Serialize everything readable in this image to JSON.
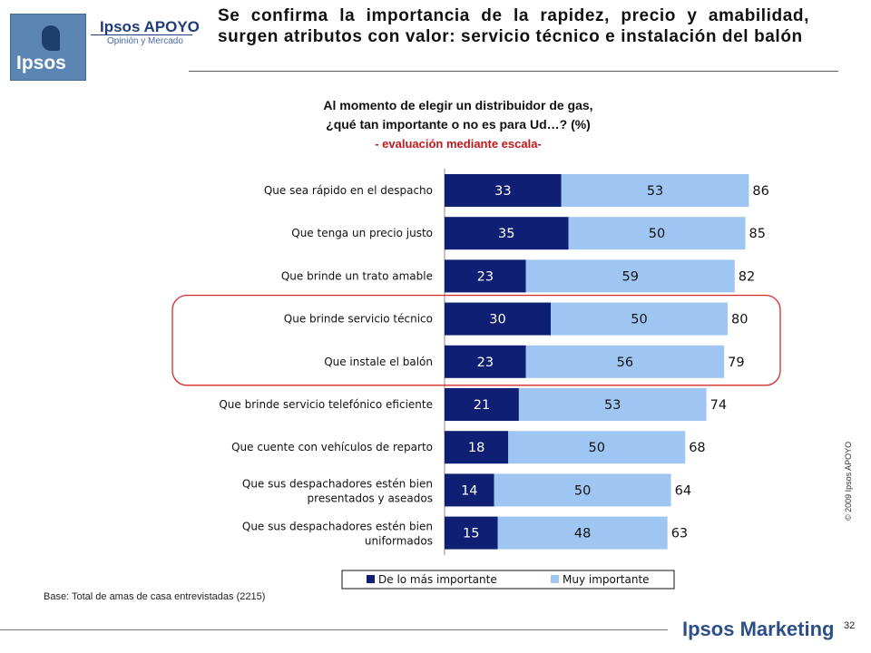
{
  "header": {
    "brand_name": "Ipsos APOYO",
    "brand_sub": "Opinión y Mercado",
    "logo_word": "Ipsos",
    "title": "Se confirma la importancia de la rapidez, precio y amabilidad, surgen atributos con valor: servicio técnico e instalación del balón"
  },
  "question": {
    "line1": "Al momento de elegir un distribuidor de gas,",
    "line2": "¿qué tan importante o no es para Ud…? (%)",
    "line3": "- evaluación  mediante escala-"
  },
  "footer": {
    "base_note": "Base: Total de amas de casa entrevistadas (2215)",
    "copyright": "© 2009 Ipsos APOYO",
    "page_number": "32",
    "marketing_logo": "Ipsos Marketing"
  },
  "colors": {
    "dark_series": "#0f1f73",
    "light_series": "#9fc6f2",
    "highlight": "#d42a2a"
  },
  "chart_data": {
    "type": "bar",
    "orientation": "horizontal",
    "stacked": true,
    "categories": [
      [
        "Que sea rápido en el despacho"
      ],
      [
        "Que tenga un precio justo"
      ],
      [
        "Que brinde un trato amable"
      ],
      [
        "Que brinde servicio técnico"
      ],
      [
        "Que instale el balón"
      ],
      [
        "Que brinde servicio telefónico eficiente"
      ],
      [
        "Que cuente con vehículos de reparto"
      ],
      [
        "Que sus despachadores estén bien",
        "presentados y aseados"
      ],
      [
        "Que sus despachadores estén bien",
        "uniformados"
      ]
    ],
    "series": [
      {
        "name": "De lo más importante",
        "values": [
          33,
          35,
          23,
          30,
          23,
          21,
          18,
          14,
          15
        ]
      },
      {
        "name": "Muy importante",
        "values": [
          53,
          50,
          59,
          50,
          56,
          53,
          50,
          50,
          48
        ]
      }
    ],
    "totals": [
      86,
      85,
      82,
      80,
      79,
      74,
      68,
      64,
      63
    ],
    "highlighted_categories": [
      3,
      4
    ],
    "legend_position": "bottom",
    "grid": false
  }
}
